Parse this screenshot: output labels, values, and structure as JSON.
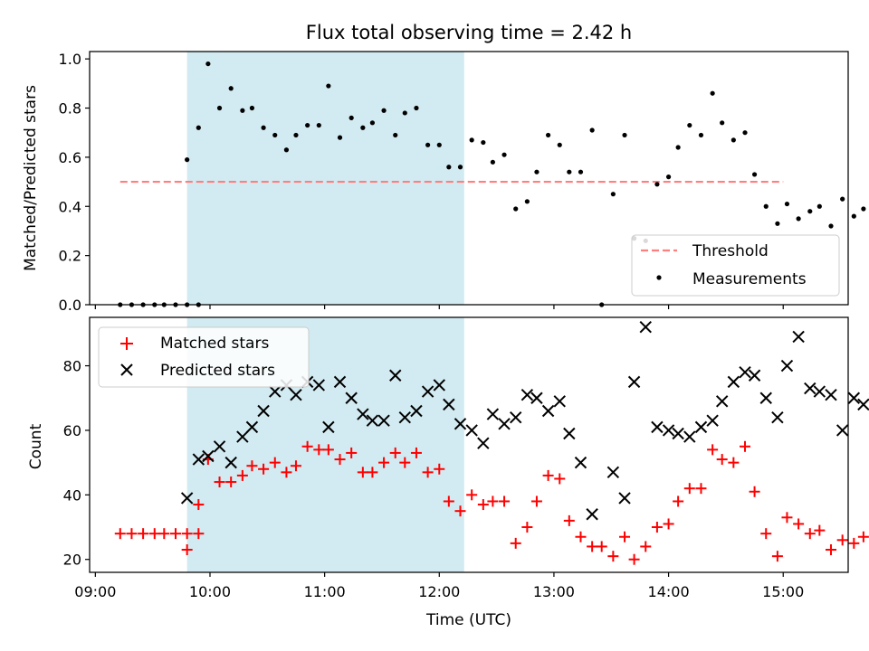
{
  "chart_data": [
    {
      "type": "scatter",
      "title": "Flux total observing time = 2.42 h",
      "xlabel": "",
      "ylabel": "Matched/Predicted stars",
      "ylim": [
        0,
        1.03
      ],
      "yticks": [
        "0.0",
        "0.2",
        "0.4",
        "0.6",
        "0.8",
        "1.0"
      ],
      "ytick_values": [
        0,
        0.2,
        0.4,
        0.6,
        0.8,
        1.0
      ],
      "highlight_span": [
        "09:48",
        "12:13"
      ],
      "highlight_color": "#add8e6",
      "threshold": {
        "name": "Threshold",
        "value": 0.5,
        "x_range": [
          "09:13",
          "15:00"
        ],
        "color": "#ff7f7f"
      },
      "legend": {
        "placement": "lower right",
        "entries": [
          "Threshold",
          "Measurements"
        ]
      },
      "series": [
        {
          "name": "Measurements",
          "color": "#000000",
          "points": [
            [
              "09:13",
              0
            ],
            [
              "09:19",
              0
            ],
            [
              "09:25",
              0
            ],
            [
              "09:31",
              0
            ],
            [
              "09:36",
              0
            ],
            [
              "09:42",
              0
            ],
            [
              "09:48",
              0
            ],
            [
              "09:54",
              0
            ],
            [
              "09:48",
              0.59
            ],
            [
              "09:54",
              0.72
            ],
            [
              "09:59",
              0.98
            ],
            [
              "10:05",
              0.8
            ],
            [
              "10:11",
              0.88
            ],
            [
              "10:17",
              0.79
            ],
            [
              "10:22",
              0.8
            ],
            [
              "10:28",
              0.72
            ],
            [
              "10:34",
              0.69
            ],
            [
              "10:40",
              0.63
            ],
            [
              "10:45",
              0.69
            ],
            [
              "10:51",
              0.73
            ],
            [
              "10:57",
              0.73
            ],
            [
              "11:02",
              0.89
            ],
            [
              "11:08",
              0.68
            ],
            [
              "11:14",
              0.76
            ],
            [
              "11:20",
              0.72
            ],
            [
              "11:25",
              0.74
            ],
            [
              "11:31",
              0.79
            ],
            [
              "11:37",
              0.69
            ],
            [
              "11:42",
              0.78
            ],
            [
              "11:48",
              0.8
            ],
            [
              "11:54",
              0.65
            ],
            [
              "12:00",
              0.65
            ],
            [
              "12:05",
              0.56
            ],
            [
              "12:11",
              0.56
            ],
            [
              "12:17",
              0.67
            ],
            [
              "12:23",
              0.66
            ],
            [
              "12:28",
              0.58
            ],
            [
              "12:34",
              0.61
            ],
            [
              "12:40",
              0.39
            ],
            [
              "12:46",
              0.42
            ],
            [
              "12:51",
              0.54
            ],
            [
              "12:57",
              0.69
            ],
            [
              "13:03",
              0.65
            ],
            [
              "13:08",
              0.54
            ],
            [
              "13:14",
              0.54
            ],
            [
              "13:20",
              0.71
            ],
            [
              "13:25",
              0
            ],
            [
              "13:31",
              0.45
            ],
            [
              "13:37",
              0.69
            ],
            [
              "13:42",
              0.27
            ],
            [
              "13:48",
              0.26
            ],
            [
              "13:54",
              0.49
            ],
            [
              "14:00",
              0.52
            ],
            [
              "14:05",
              0.64
            ],
            [
              "14:11",
              0.73
            ],
            [
              "14:17",
              0.69
            ],
            [
              "14:23",
              0.86
            ],
            [
              "14:28",
              0.74
            ],
            [
              "14:34",
              0.67
            ],
            [
              "14:40",
              0.7
            ],
            [
              "14:45",
              0.53
            ],
            [
              "14:51",
              0.4
            ],
            [
              "14:57",
              0.33
            ],
            [
              "15:02",
              0.41
            ],
            [
              "15:08",
              0.35
            ],
            [
              "15:14",
              0.38
            ],
            [
              "15:19",
              0.4
            ],
            [
              "15:25",
              0.32
            ],
            [
              "15:31",
              0.43
            ],
            [
              "15:37",
              0.36
            ],
            [
              "15:42",
              0.39
            ],
            [
              "15:48",
              0.32
            ]
          ]
        }
      ]
    },
    {
      "type": "scatter",
      "title": "",
      "xlabel": "Time (UTC)",
      "ylabel": "Count",
      "ylim": [
        16,
        95
      ],
      "yticks": [
        "20",
        "40",
        "60",
        "80"
      ],
      "ytick_values": [
        20,
        40,
        60,
        80
      ],
      "xticks": [
        "09:00",
        "10:00",
        "11:00",
        "12:00",
        "13:00",
        "14:00",
        "15:00"
      ],
      "xlim": [
        "08:57",
        "15:34"
      ],
      "highlight_span": [
        "09:48",
        "12:13"
      ],
      "highlight_color": "#add8e6",
      "legend": {
        "placement": "upper left",
        "entries": [
          "Matched stars",
          "Predicted stars"
        ]
      },
      "series": [
        {
          "name": "Matched stars",
          "marker": "+",
          "color": "#ff0000",
          "points": [
            [
              "09:13",
              28
            ],
            [
              "09:19",
              28
            ],
            [
              "09:25",
              28
            ],
            [
              "09:31",
              28
            ],
            [
              "09:36",
              28
            ],
            [
              "09:42",
              28
            ],
            [
              "09:48",
              28
            ],
            [
              "09:54",
              28
            ],
            [
              "09:48",
              23
            ],
            [
              "09:54",
              37
            ],
            [
              "09:59",
              51
            ],
            [
              "10:05",
              44
            ],
            [
              "10:11",
              44
            ],
            [
              "10:17",
              46
            ],
            [
              "10:22",
              49
            ],
            [
              "10:28",
              48
            ],
            [
              "10:34",
              50
            ],
            [
              "10:40",
              47
            ],
            [
              "10:45",
              49
            ],
            [
              "10:51",
              55
            ],
            [
              "10:57",
              54
            ],
            [
              "11:02",
              54
            ],
            [
              "11:08",
              51
            ],
            [
              "11:14",
              53
            ],
            [
              "11:20",
              47
            ],
            [
              "11:25",
              47
            ],
            [
              "11:31",
              50
            ],
            [
              "11:37",
              53
            ],
            [
              "11:42",
              50
            ],
            [
              "11:48",
              53
            ],
            [
              "11:54",
              47
            ],
            [
              "12:00",
              48
            ],
            [
              "12:05",
              38
            ],
            [
              "12:11",
              35
            ],
            [
              "12:17",
              40
            ],
            [
              "12:23",
              37
            ],
            [
              "12:28",
              38
            ],
            [
              "12:34",
              38
            ],
            [
              "12:40",
              25
            ],
            [
              "12:46",
              30
            ],
            [
              "12:51",
              38
            ],
            [
              "12:57",
              46
            ],
            [
              "13:03",
              45
            ],
            [
              "13:08",
              32
            ],
            [
              "13:14",
              27
            ],
            [
              "13:20",
              24
            ],
            [
              "13:25",
              24
            ],
            [
              "13:31",
              21
            ],
            [
              "13:37",
              27
            ],
            [
              "13:42",
              20
            ],
            [
              "13:48",
              24
            ],
            [
              "13:54",
              30
            ],
            [
              "14:00",
              31
            ],
            [
              "14:05",
              38
            ],
            [
              "14:11",
              42
            ],
            [
              "14:17",
              42
            ],
            [
              "14:23",
              54
            ],
            [
              "14:28",
              51
            ],
            [
              "14:34",
              50
            ],
            [
              "14:40",
              55
            ],
            [
              "14:45",
              41
            ],
            [
              "14:51",
              28
            ],
            [
              "14:57",
              21
            ],
            [
              "15:02",
              33
            ],
            [
              "15:08",
              31
            ],
            [
              "15:14",
              28
            ],
            [
              "15:19",
              29
            ],
            [
              "15:25",
              23
            ],
            [
              "15:31",
              26
            ],
            [
              "15:37",
              25
            ],
            [
              "15:42",
              27
            ],
            [
              "15:48",
              22
            ]
          ]
        },
        {
          "name": "Predicted stars",
          "marker": "x",
          "color": "#000000",
          "points": [
            [
              "09:48",
              39
            ],
            [
              "09:54",
              51
            ],
            [
              "09:59",
              52
            ],
            [
              "10:05",
              55
            ],
            [
              "10:11",
              50
            ],
            [
              "10:17",
              58
            ],
            [
              "10:22",
              61
            ],
            [
              "10:28",
              66
            ],
            [
              "10:34",
              72
            ],
            [
              "10:40",
              74
            ],
            [
              "10:45",
              71
            ],
            [
              "10:51",
              75
            ],
            [
              "10:57",
              74
            ],
            [
              "11:02",
              61
            ],
            [
              "11:08",
              75
            ],
            [
              "11:14",
              70
            ],
            [
              "11:20",
              65
            ],
            [
              "11:25",
              63
            ],
            [
              "11:31",
              63
            ],
            [
              "11:37",
              77
            ],
            [
              "11:42",
              64
            ],
            [
              "11:48",
              66
            ],
            [
              "11:54",
              72
            ],
            [
              "12:00",
              74
            ],
            [
              "12:05",
              68
            ],
            [
              "12:11",
              62
            ],
            [
              "12:17",
              60
            ],
            [
              "12:23",
              56
            ],
            [
              "12:28",
              65
            ],
            [
              "12:34",
              62
            ],
            [
              "12:40",
              64
            ],
            [
              "12:46",
              71
            ],
            [
              "12:51",
              70
            ],
            [
              "12:57",
              66
            ],
            [
              "13:03",
              69
            ],
            [
              "13:08",
              59
            ],
            [
              "13:14",
              50
            ],
            [
              "13:20",
              34
            ],
            [
              "13:31",
              47
            ],
            [
              "13:37",
              39
            ],
            [
              "13:42",
              75
            ],
            [
              "13:48",
              92
            ],
            [
              "13:54",
              61
            ],
            [
              "14:00",
              60
            ],
            [
              "14:05",
              59
            ],
            [
              "14:11",
              58
            ],
            [
              "14:17",
              61
            ],
            [
              "14:23",
              63
            ],
            [
              "14:28",
              69
            ],
            [
              "14:34",
              75
            ],
            [
              "14:40",
              78
            ],
            [
              "14:45",
              77
            ],
            [
              "14:51",
              70
            ],
            [
              "14:57",
              64
            ],
            [
              "15:02",
              80
            ],
            [
              "15:08",
              89
            ],
            [
              "15:14",
              73
            ],
            [
              "15:19",
              72
            ],
            [
              "15:25",
              71
            ],
            [
              "15:31",
              60
            ],
            [
              "15:37",
              70
            ],
            [
              "15:42",
              68
            ],
            [
              "15:48",
              70
            ]
          ]
        }
      ]
    }
  ]
}
